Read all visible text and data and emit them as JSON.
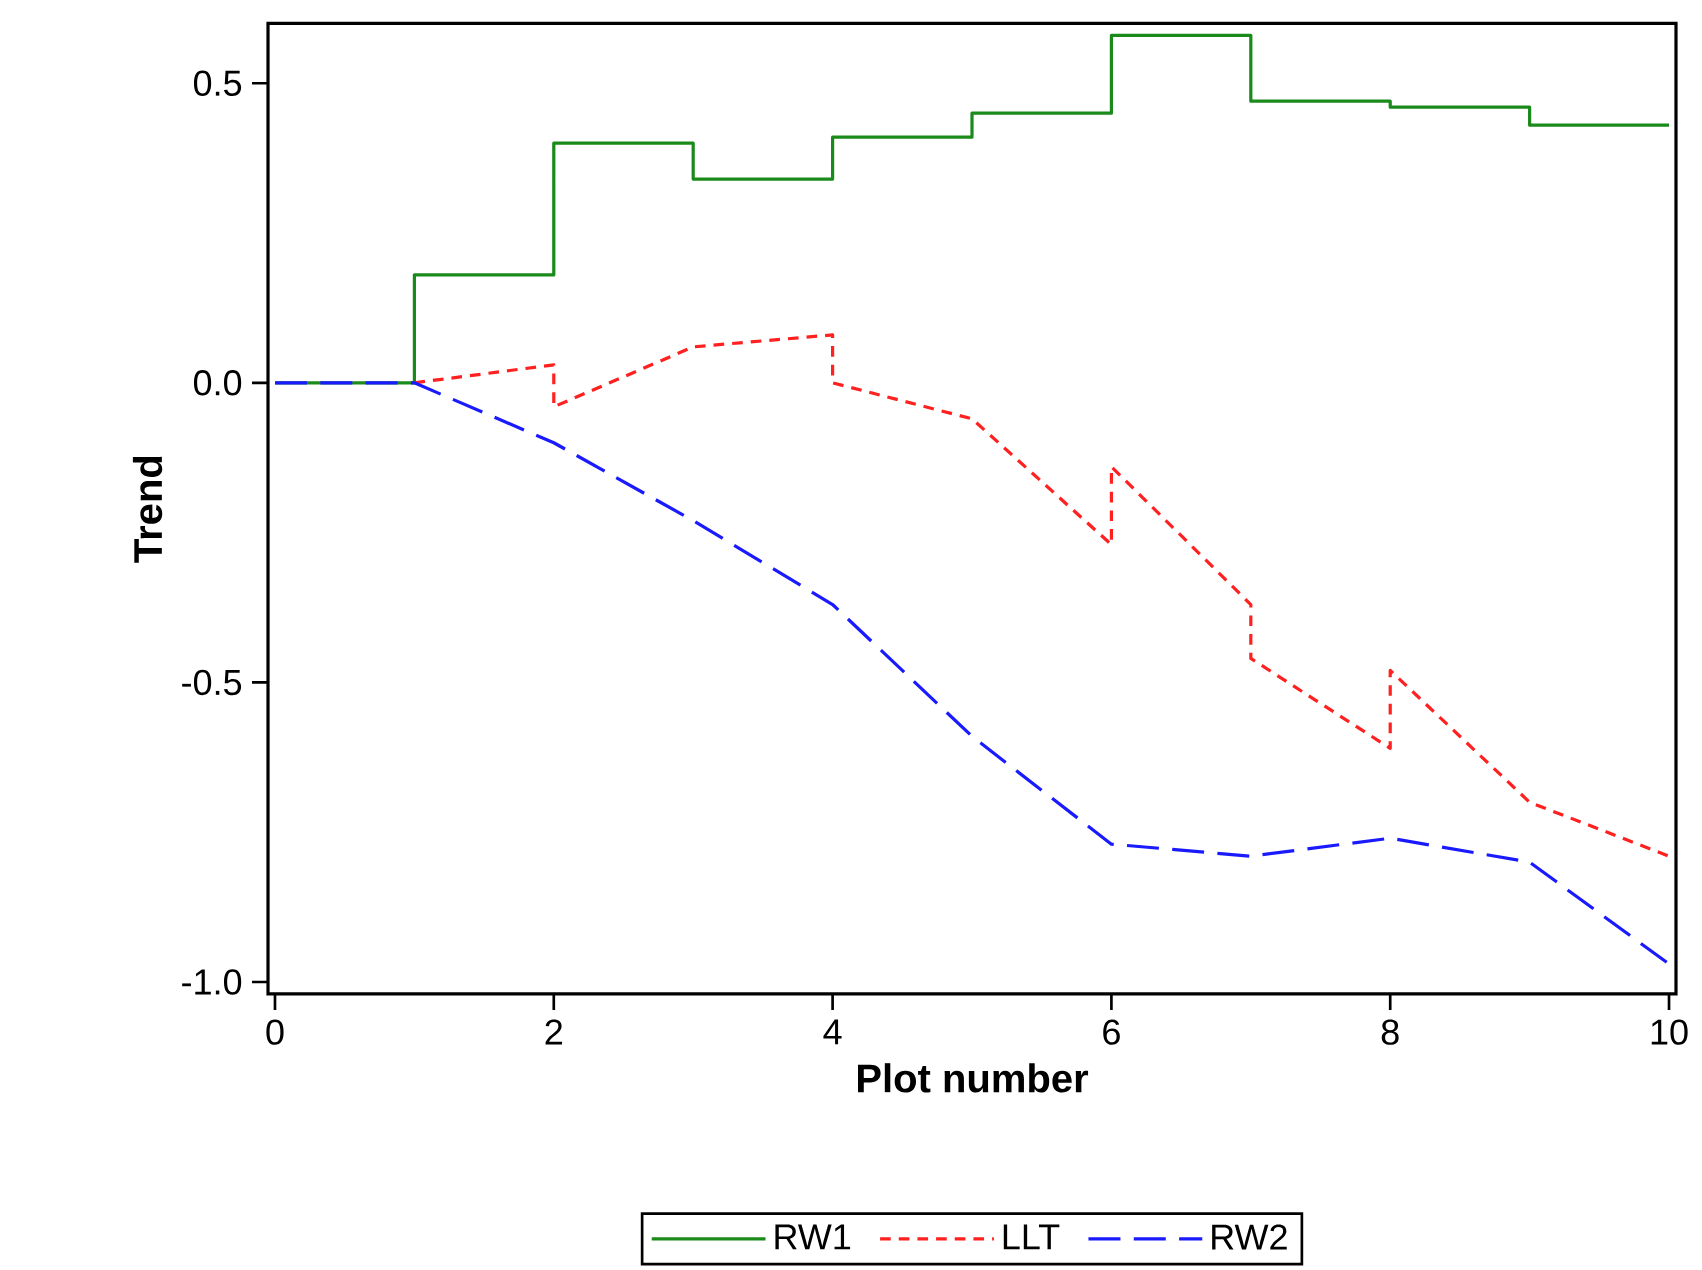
{
  "chart_data": {
    "type": "line",
    "xlabel": "Plot number",
    "ylabel": "Trend",
    "xlim": [
      -0.05,
      10.05
    ],
    "ylim": [
      -1.02,
      0.6
    ],
    "xticks": [
      0,
      2,
      4,
      6,
      8,
      10
    ],
    "yticks": [
      {
        "value": -1,
        "label": "-1.0"
      },
      {
        "value": -0.5,
        "label": "-0.5"
      },
      {
        "value": 0,
        "label": "0.0"
      },
      {
        "value": 0.5,
        "label": "0.5"
      }
    ],
    "grid": false,
    "legend": "bottom",
    "marker": "none",
    "series": [
      {
        "name": "RW1",
        "type": "step",
        "color": "#1a8a1a",
        "line_style": "solid",
        "x": [
          0,
          1,
          2,
          3,
          4,
          5,
          6,
          7,
          8,
          9,
          10
        ],
        "values": [
          0,
          0.18,
          0.4,
          0.34,
          0.41,
          0.45,
          0.58,
          0.47,
          0.46,
          0.43,
          0.43
        ]
      },
      {
        "name": "LLT",
        "color": "#ff2020",
        "line_style": "dashed",
        "x": [
          1,
          2,
          2,
          3,
          4,
          4,
          5,
          6,
          6,
          7,
          7,
          8,
          8,
          9,
          10
        ],
        "values": [
          0,
          0.03,
          -0.04,
          0.06,
          0.08,
          0,
          -0.06,
          -0.27,
          -0.14,
          -0.37,
          -0.46,
          -0.61,
          -0.48,
          -0.7,
          -0.79
        ]
      },
      {
        "name": "RW2",
        "color": "#1a1aff",
        "line_style": "dashed",
        "x": [
          0,
          1,
          2,
          3,
          4,
          5,
          6,
          7,
          8,
          9,
          10
        ],
        "values": [
          0,
          0,
          -0.1,
          -0.23,
          -0.37,
          -0.59,
          -0.77,
          -0.79,
          -0.76,
          -0.8,
          -0.97
        ]
      }
    ]
  }
}
